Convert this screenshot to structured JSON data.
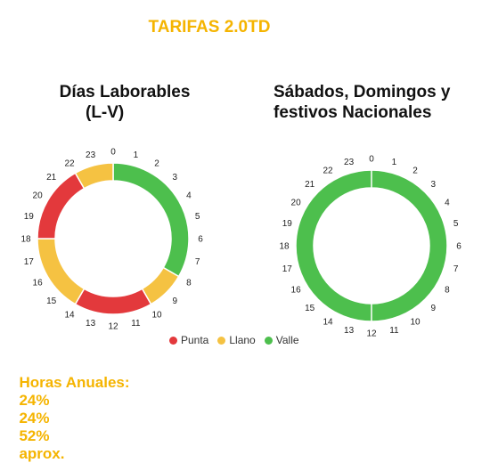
{
  "header": {
    "title": "TARIFAS 2.0TD"
  },
  "colors": {
    "punta": "#e3393c",
    "llano": "#f5c242",
    "valle": "#4dbf4d",
    "title": "#f5b400",
    "annual": "#f5b400"
  },
  "chart_data": [
    {
      "type": "pie",
      "title_lines": [
        "Días Laborables",
        "(L-V)"
      ],
      "hours": [
        "0",
        "1",
        "2",
        "3",
        "4",
        "5",
        "6",
        "7",
        "8",
        "9",
        "10",
        "11",
        "12",
        "13",
        "14",
        "15",
        "16",
        "17",
        "18",
        "19",
        "20",
        "21",
        "22",
        "23"
      ],
      "segments": [
        {
          "label": "Valle",
          "start_hour": 0,
          "end_hour": 8
        },
        {
          "label": "Llano",
          "start_hour": 8,
          "end_hour": 10
        },
        {
          "label": "Punta",
          "start_hour": 10,
          "end_hour": 14
        },
        {
          "label": "Llano",
          "start_hour": 14,
          "end_hour": 18
        },
        {
          "label": "Punta",
          "start_hour": 18,
          "end_hour": 22
        },
        {
          "label": "Llano",
          "start_hour": 22,
          "end_hour": 24
        }
      ]
    },
    {
      "type": "pie",
      "title_lines": [
        "Sábados, Domingos y",
        "festivos Nacionales"
      ],
      "hours": [
        "0",
        "1",
        "2",
        "3",
        "4",
        "5",
        "6",
        "7",
        "8",
        "9",
        "10",
        "11",
        "12",
        "13",
        "14",
        "15",
        "16",
        "17",
        "18",
        "19",
        "20",
        "21",
        "22",
        "23"
      ],
      "segments": [
        {
          "label": "Valle",
          "start_hour": 0,
          "end_hour": 24
        }
      ]
    }
  ],
  "legend": [
    {
      "label": "Punta",
      "color": "#e3393c"
    },
    {
      "label": "Llano",
      "color": "#f5c242"
    },
    {
      "label": "Valle",
      "color": "#4dbf4d"
    }
  ],
  "annual": {
    "label": "Horas Anuales:",
    "values": [
      "24%",
      "24%",
      "52%"
    ],
    "suffix": "aprox."
  }
}
